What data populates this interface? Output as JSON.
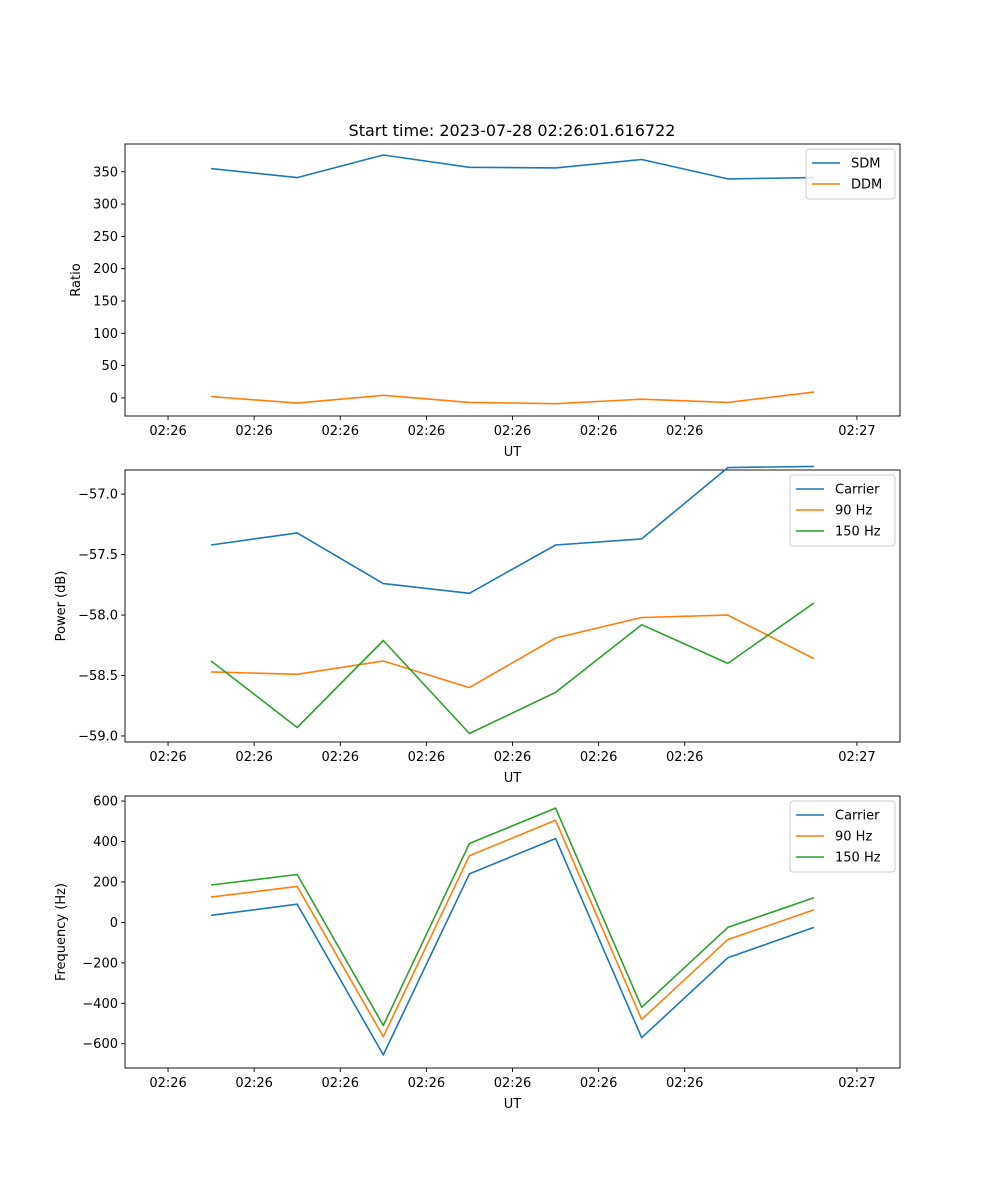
{
  "figure": {
    "title": "Start time: 2023-07-28 02:26:01.616722"
  },
  "colors": {
    "blue": "#1f77b4",
    "orange": "#ff7f0e",
    "green": "#2ca02c"
  },
  "chart_data": [
    {
      "type": "line",
      "title": "Start time: 2023-07-28 02:26:01.616722",
      "xlabel": "UT",
      "ylabel": "Ratio",
      "xticks": [
        "02:26",
        "02:26",
        "02:26",
        "02:26",
        "02:26",
        "02:26",
        "02:26"
      ],
      "xtick_final": "02:27",
      "xlim": [
        -0.5,
        8.5
      ],
      "x": [
        0.5,
        1.5,
        2.5,
        3.5,
        4.5,
        5.5,
        6.5,
        7.5
      ],
      "ylim": [
        -28,
        393
      ],
      "yticks": [
        0,
        50,
        100,
        150,
        200,
        250,
        300,
        350
      ],
      "ytick_labels": [
        "0",
        "50",
        "100",
        "150",
        "200",
        "250",
        "300",
        "350"
      ],
      "legend_position": "top-right",
      "series": [
        {
          "name": "SDM",
          "color": "#1f77b4",
          "values": [
            355,
            341,
            376,
            357,
            356,
            369,
            339,
            341
          ]
        },
        {
          "name": "DDM",
          "color": "#ff7f0e",
          "values": [
            2,
            -8,
            4,
            -7,
            -9,
            -2,
            -7,
            9
          ]
        }
      ]
    },
    {
      "type": "line",
      "title": "",
      "xlabel": "UT",
      "ylabel": "Power (dB)",
      "xticks": [
        "02:26",
        "02:26",
        "02:26",
        "02:26",
        "02:26",
        "02:26",
        "02:26"
      ],
      "xtick_final": "02:27",
      "xlim": [
        -0.5,
        8.5
      ],
      "x": [
        0.5,
        1.5,
        2.5,
        3.5,
        4.5,
        5.5,
        6.5,
        7.5
      ],
      "ylim": [
        -59.05,
        -56.8
      ],
      "yticks": [
        -59.0,
        -58.5,
        -58.0,
        -57.5,
        -57.0
      ],
      "ytick_labels": [
        "−59.0",
        "−58.5",
        "−58.0",
        "−57.5",
        "−57.0"
      ],
      "legend_position": "top-right",
      "series": [
        {
          "name": "Carrier",
          "color": "#1f77b4",
          "values": [
            -57.42,
            -57.32,
            -57.74,
            -57.82,
            -57.42,
            -57.37,
            -56.78,
            -56.77
          ]
        },
        {
          "name": "90 Hz",
          "color": "#ff7f0e",
          "values": [
            -58.47,
            -58.49,
            -58.38,
            -58.6,
            -58.19,
            -58.02,
            -58.0,
            -58.36
          ]
        },
        {
          "name": "150 Hz",
          "color": "#2ca02c",
          "values": [
            -58.38,
            -58.93,
            -58.21,
            -58.98,
            -58.64,
            -58.08,
            -58.4,
            -57.9
          ]
        }
      ]
    },
    {
      "type": "line",
      "title": "",
      "xlabel": "UT",
      "ylabel": "Frequency (Hz)",
      "xticks": [
        "02:26",
        "02:26",
        "02:26",
        "02:26",
        "02:26",
        "02:26",
        "02:26"
      ],
      "xtick_final": "02:27",
      "xlim": [
        -0.5,
        8.5
      ],
      "x": [
        0.5,
        1.5,
        2.5,
        3.5,
        4.5,
        5.5,
        6.5,
        7.5
      ],
      "ylim": [
        -720,
        625
      ],
      "yticks": [
        -600,
        -400,
        -200,
        0,
        200,
        400,
        600
      ],
      "ytick_labels": [
        "−600",
        "−400",
        "−200",
        "0",
        "200",
        "400",
        "600"
      ],
      "legend_position": "top-right",
      "series": [
        {
          "name": "Carrier",
          "color": "#1f77b4",
          "values": [
            35,
            90,
            -655,
            240,
            415,
            -570,
            -175,
            -25
          ]
        },
        {
          "name": "90 Hz",
          "color": "#ff7f0e",
          "values": [
            125,
            178,
            -565,
            330,
            505,
            -480,
            -85,
            62
          ]
        },
        {
          "name": "150 Hz",
          "color": "#2ca02c",
          "values": [
            185,
            237,
            -510,
            390,
            565,
            -420,
            -25,
            122
          ]
        }
      ]
    }
  ]
}
